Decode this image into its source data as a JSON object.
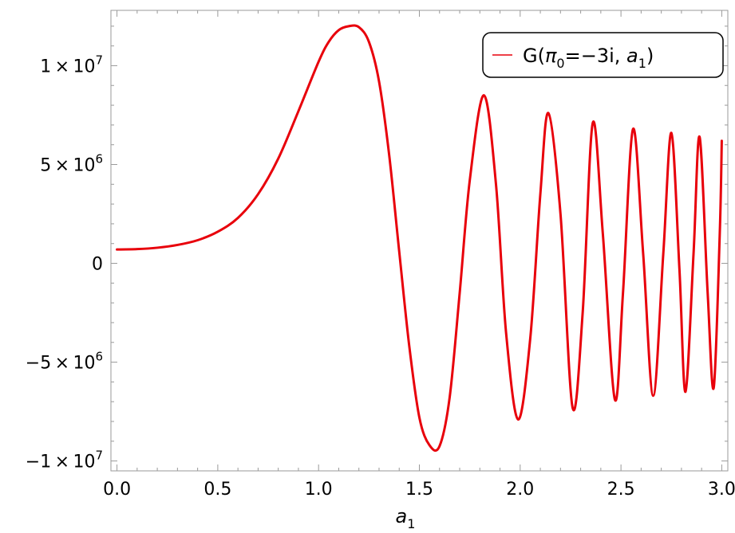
{
  "chart_data": {
    "type": "line",
    "title": "",
    "xlabel": "a",
    "xlabel_subscript": "1",
    "ylabel": "",
    "xlim": [
      -0.03,
      3.03
    ],
    "ylim": [
      -10500000,
      12800000
    ],
    "x_ticks": [
      0.0,
      0.5,
      1.0,
      1.5,
      2.0,
      2.5,
      3.0
    ],
    "x_tick_labels": [
      "0.0",
      "0.5",
      "1.0",
      "1.5",
      "2.0",
      "2.5",
      "3.0"
    ],
    "y_ticks": [
      -10000000,
      -5000000,
      0,
      5000000,
      10000000
    ],
    "y_tick_labels": [
      {
        "mantissa": "−1",
        "base": "10",
        "exponent": "7"
      },
      {
        "mantissa": "−5",
        "base": "10",
        "exponent": "6"
      },
      {
        "mantissa": "0",
        "base": "",
        "exponent": ""
      },
      {
        "mantissa": "5",
        "base": "10",
        "exponent": "6"
      },
      {
        "mantissa": "1",
        "base": "10",
        "exponent": "7"
      }
    ],
    "legend_position": "top-right",
    "series": [
      {
        "legend": {
          "prefix": "G(",
          "pi": "π",
          "pi_sub": "0",
          "mid": "=−3i, ",
          "a": "a",
          "a_sub": "1",
          "suffix": ")"
        },
        "color": "#e8000b",
        "x": [
          0.0,
          0.1,
          0.2,
          0.3,
          0.4,
          0.5,
          0.6,
          0.7,
          0.8,
          0.9,
          1.0,
          1.05,
          1.1,
          1.15,
          1.2,
          1.25,
          1.3,
          1.35,
          1.4,
          1.45,
          1.5,
          1.55,
          1.6,
          1.65,
          1.7,
          1.75,
          1.82,
          1.88,
          1.93,
          1.99,
          2.05,
          2.1,
          2.14,
          2.2,
          2.26,
          2.31,
          2.36,
          2.41,
          2.47,
          2.51,
          2.56,
          2.61,
          2.66,
          2.71,
          2.75,
          2.79,
          2.82,
          2.86,
          2.89,
          2.93,
          2.96,
          2.99,
          3.0
        ],
        "y": [
          700000,
          720000,
          790000,
          930000,
          1170000,
          1600000,
          2300000,
          3500000,
          5300000,
          7700000,
          10200000,
          11200000,
          11800000,
          12000000,
          11950000,
          11200000,
          9200000,
          5500000,
          600000,
          -4200000,
          -7800000,
          -9200000,
          -9250000,
          -6800000,
          -1500000,
          4200000,
          8500000,
          4000000,
          -3500000,
          -7900000,
          -3800000,
          3500000,
          7600000,
          2500000,
          -7300000,
          -2500000,
          7100000,
          1500000,
          -6900000,
          -1500000,
          6800000,
          500000,
          -6700000,
          500000,
          6600000,
          -300000,
          -6500000,
          500000,
          6400000,
          -1500000,
          -6300000,
          1500000,
          6200000
        ]
      }
    ]
  }
}
